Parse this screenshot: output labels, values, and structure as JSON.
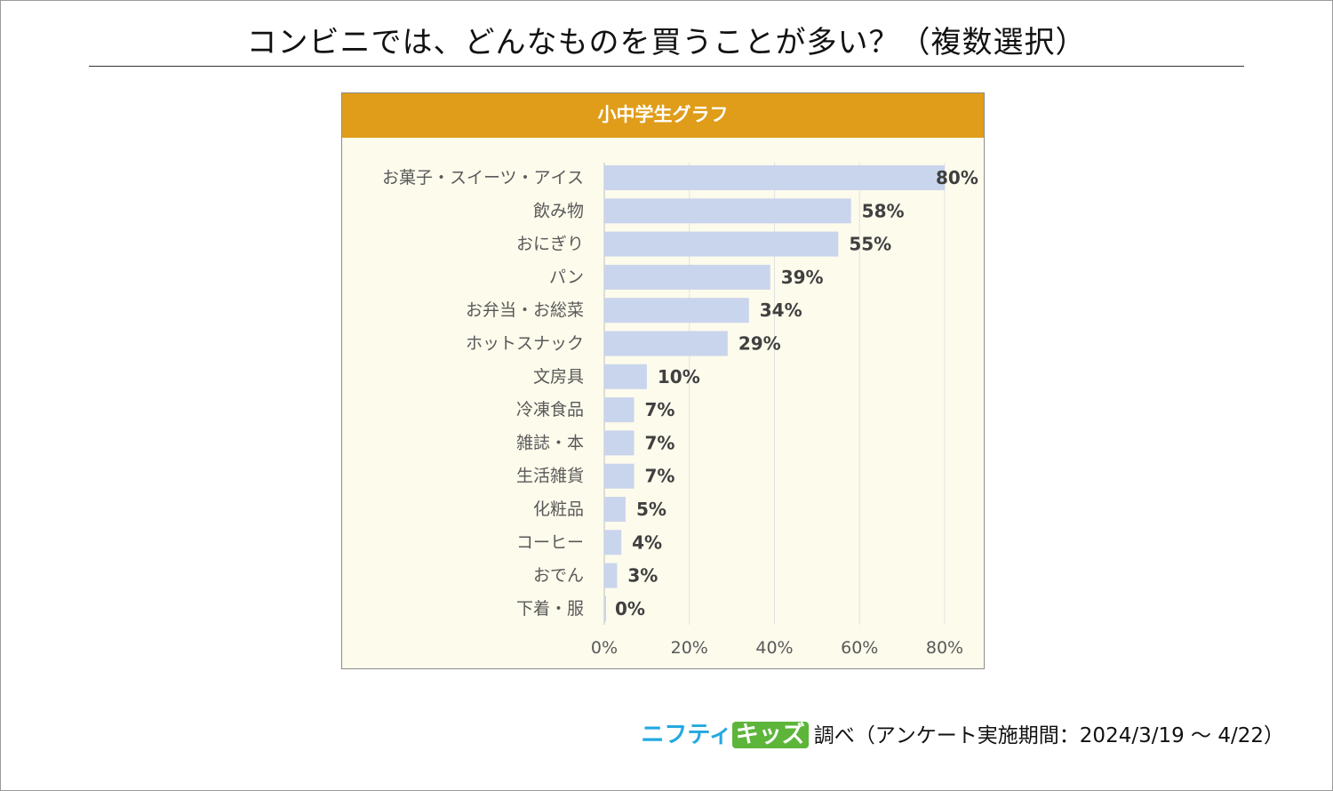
{
  "title": "コンビニでは、どんなものを買うことが多い？（複数選択）",
  "chart_data": {
    "type": "bar",
    "orientation": "horizontal",
    "title": "小中学生グラフ",
    "categories": [
      "お菓子・スイーツ・アイス",
      "飲み物",
      "おにぎり",
      "パン",
      "お弁当・お総菜",
      "ホットスナック",
      "文房具",
      "冷凍食品",
      "雑誌・本",
      "生活雑貨",
      "化粧品",
      "コーヒー",
      "おでん",
      "下着・服"
    ],
    "values": [
      80,
      58,
      55,
      39,
      34,
      29,
      10,
      7,
      7,
      7,
      5,
      4,
      3,
      0
    ],
    "value_labels": [
      "80%",
      "58%",
      "55%",
      "39%",
      "34%",
      "29%",
      "10%",
      "7%",
      "7%",
      "7%",
      "5%",
      "4%",
      "3%",
      "0%"
    ],
    "x_ticks": [
      "0%",
      "20%",
      "40%",
      "60%",
      "80%"
    ],
    "xlim": [
      0,
      80
    ],
    "xlabel": "",
    "ylabel": "",
    "grid": true,
    "colors": {
      "bar": "#c9d5ec",
      "header": "#e09d1a",
      "background": "#fdfbec",
      "value_label": "#404040",
      "category_label": "#595959",
      "grid": "#e2e2e2"
    }
  },
  "footer": {
    "brand_part1": "ニフティ",
    "brand_part2": "キッズ",
    "source": "調べ（アンケート実施期間：2024/3/19 ～ 4/22）"
  }
}
